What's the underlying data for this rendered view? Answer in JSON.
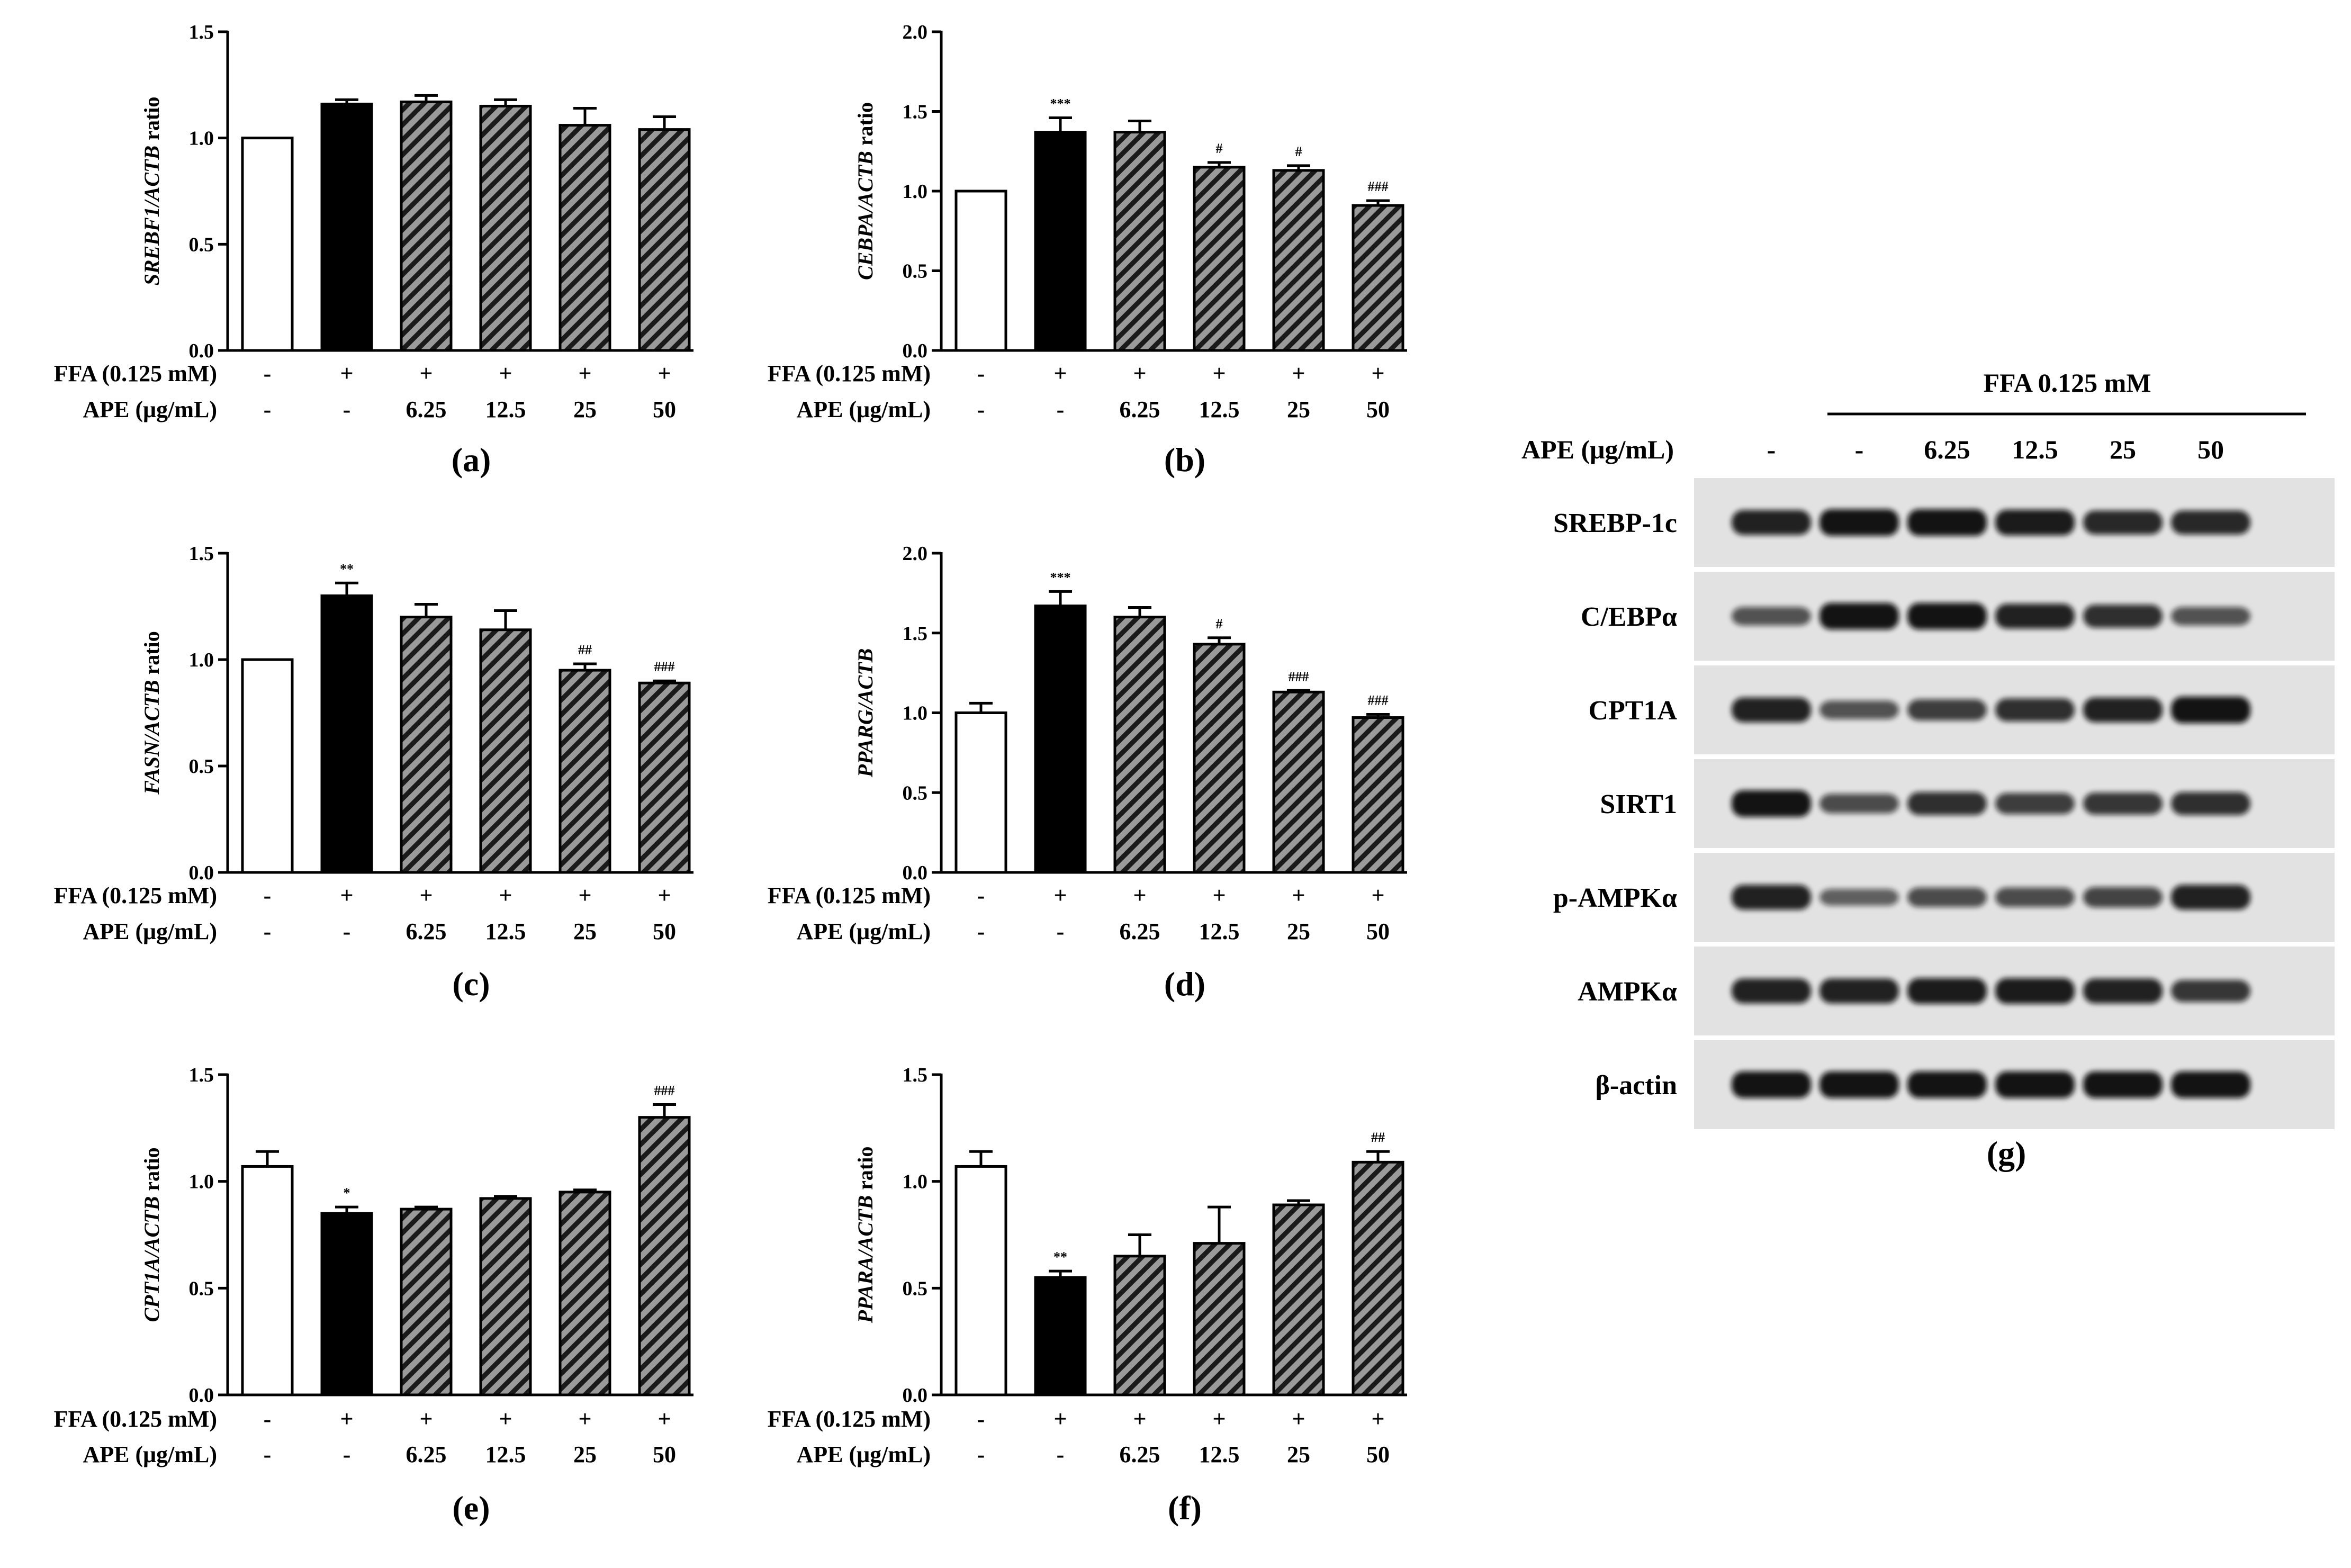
{
  "chart_data": [
    {
      "panel": "(a)",
      "type": "bar",
      "ylabel": {
        "gene": "SREBF1/ACTB",
        "suffix": " ratio"
      },
      "ylim": [
        0,
        1.5
      ],
      "yticks": [
        "0.0",
        "0.5",
        "1.0",
        "1.5"
      ],
      "bar_styles": [
        "white",
        "black",
        "hatched",
        "hatched",
        "hatched",
        "hatched"
      ],
      "values": [
        1.0,
        1.16,
        1.17,
        1.15,
        1.06,
        1.04
      ],
      "errors": [
        0.0,
        0.02,
        0.03,
        0.03,
        0.08,
        0.06
      ],
      "significance": [
        "",
        "",
        "",
        "",
        "",
        ""
      ],
      "conditions": {
        "row_labels": [
          "FFA (0.125 mM)",
          "APE (μg/mL)"
        ],
        "ffa": [
          "-",
          "+",
          "+",
          "+",
          "+",
          "+"
        ],
        "ape": [
          "-",
          "-",
          "6.25",
          "12.5",
          "25",
          "50"
        ]
      }
    },
    {
      "panel": "(b)",
      "type": "bar",
      "ylabel": {
        "gene": "CEBPA/ACTB",
        "suffix": " ratio"
      },
      "ylim": [
        0,
        2.0
      ],
      "yticks": [
        "0.0",
        "0.5",
        "1.0",
        "1.5",
        "2.0"
      ],
      "bar_styles": [
        "white",
        "black",
        "hatched",
        "hatched",
        "hatched",
        "hatched"
      ],
      "values": [
        1.0,
        1.37,
        1.37,
        1.15,
        1.13,
        0.91
      ],
      "errors": [
        0.0,
        0.09,
        0.07,
        0.03,
        0.03,
        0.03
      ],
      "significance": [
        "",
        "***",
        "",
        "#",
        "#",
        "###"
      ],
      "conditions": {
        "row_labels": [
          "FFA (0.125 mM)",
          "APE (μg/mL)"
        ],
        "ffa": [
          "-",
          "+",
          "+",
          "+",
          "+",
          "+"
        ],
        "ape": [
          "-",
          "-",
          "6.25",
          "12.5",
          "25",
          "50"
        ]
      }
    },
    {
      "panel": "(c)",
      "type": "bar",
      "ylabel": {
        "gene": "FASN/ACTB",
        "suffix": " ratio"
      },
      "ylim": [
        0,
        1.5
      ],
      "yticks": [
        "0.0",
        "0.5",
        "1.0",
        "1.5"
      ],
      "bar_styles": [
        "white",
        "black",
        "hatched",
        "hatched",
        "hatched",
        "hatched"
      ],
      "values": [
        1.0,
        1.3,
        1.2,
        1.14,
        0.95,
        0.89
      ],
      "errors": [
        0.0,
        0.06,
        0.06,
        0.09,
        0.03,
        0.01
      ],
      "significance": [
        "",
        "**",
        "",
        "",
        "##",
        "###"
      ],
      "conditions": {
        "row_labels": [
          "FFA (0.125 mM)",
          "APE (μg/mL)"
        ],
        "ffa": [
          "-",
          "+",
          "+",
          "+",
          "+",
          "+"
        ],
        "ape": [
          "-",
          "-",
          "6.25",
          "12.5",
          "25",
          "50"
        ]
      }
    },
    {
      "panel": "(d)",
      "type": "bar",
      "ylabel": {
        "gene": "PPARG/ACTB",
        "suffix": ""
      },
      "ylim": [
        0,
        2.0
      ],
      "yticks": [
        "0.0",
        "0.5",
        "1.0",
        "1.5",
        "2.0"
      ],
      "bar_styles": [
        "white",
        "black",
        "hatched",
        "hatched",
        "hatched",
        "hatched"
      ],
      "values": [
        1.0,
        1.67,
        1.6,
        1.43,
        1.13,
        0.97
      ],
      "errors": [
        0.06,
        0.09,
        0.06,
        0.04,
        0.01,
        0.02
      ],
      "significance": [
        "",
        "***",
        "",
        "#",
        "###",
        "###"
      ],
      "conditions": {
        "row_labels": [
          "FFA (0.125 mM)",
          "APE (μg/mL)"
        ],
        "ffa": [
          "-",
          "+",
          "+",
          "+",
          "+",
          "+"
        ],
        "ape": [
          "-",
          "-",
          "6.25",
          "12.5",
          "25",
          "50"
        ]
      }
    },
    {
      "panel": "(e)",
      "type": "bar",
      "ylabel": {
        "gene": "CPT1A/ACTB",
        "suffix": " ratio"
      },
      "ylim": [
        0,
        1.5
      ],
      "yticks": [
        "0.0",
        "0.5",
        "1.0",
        "1.5"
      ],
      "bar_styles": [
        "white",
        "black",
        "hatched",
        "hatched",
        "hatched",
        "hatched"
      ],
      "values": [
        1.07,
        0.85,
        0.87,
        0.92,
        0.95,
        1.3
      ],
      "errors": [
        0.07,
        0.03,
        0.01,
        0.01,
        0.01,
        0.06
      ],
      "significance": [
        "",
        "*",
        "",
        "",
        "",
        "###"
      ],
      "conditions": {
        "row_labels": [
          "FFA (0.125 mM)",
          "APE (μg/mL)"
        ],
        "ffa": [
          "-",
          "+",
          "+",
          "+",
          "+",
          "+"
        ],
        "ape": [
          "-",
          "-",
          "6.25",
          "12.5",
          "25",
          "50"
        ]
      }
    },
    {
      "panel": "(f)",
      "type": "bar",
      "ylabel": {
        "gene": "PPARA/ACTB",
        "suffix": " ratio"
      },
      "ylim": [
        0,
        1.5
      ],
      "yticks": [
        "0.0",
        "0.5",
        "1.0",
        "1.5"
      ],
      "bar_styles": [
        "white",
        "black",
        "hatched",
        "hatched",
        "hatched",
        "hatched"
      ],
      "values": [
        1.07,
        0.55,
        0.65,
        0.71,
        0.89,
        1.09
      ],
      "errors": [
        0.07,
        0.03,
        0.1,
        0.17,
        0.02,
        0.05
      ],
      "significance": [
        "",
        "**",
        "",
        "",
        "",
        "##"
      ],
      "conditions": {
        "row_labels": [
          "FFA (0.125 mM)",
          "APE (μg/mL)"
        ],
        "ffa": [
          "-",
          "+",
          "+",
          "+",
          "+",
          "+"
        ],
        "ape": [
          "-",
          "-",
          "6.25",
          "12.5",
          "25",
          "50"
        ]
      }
    }
  ],
  "western_blot": {
    "panel": "(g)",
    "header": "FFA 0.125 mM",
    "ape_label": "APE (μg/mL)",
    "ape_lanes": [
      "-",
      "-",
      "6.25",
      "12.5",
      "25",
      "50"
    ],
    "proteins": [
      {
        "name": "SREBP-1c",
        "intensity": [
          0.85,
          0.95,
          0.95,
          0.9,
          0.8,
          0.8
        ]
      },
      {
        "name": "C/EBPα",
        "intensity": [
          0.5,
          0.95,
          0.95,
          0.85,
          0.75,
          0.5
        ]
      },
      {
        "name": "CPT1A",
        "intensity": [
          0.85,
          0.5,
          0.65,
          0.75,
          0.85,
          0.95
        ]
      },
      {
        "name": "SIRT1",
        "intensity": [
          0.95,
          0.55,
          0.75,
          0.65,
          0.7,
          0.75
        ]
      },
      {
        "name": "p-AMPKα",
        "intensity": [
          0.85,
          0.4,
          0.55,
          0.55,
          0.6,
          0.85
        ]
      },
      {
        "name": "AMPKα",
        "intensity": [
          0.85,
          0.85,
          0.9,
          0.9,
          0.85,
          0.7
        ]
      },
      {
        "name": "β-actin",
        "intensity": [
          0.95,
          0.95,
          0.95,
          0.95,
          0.95,
          0.95
        ]
      }
    ]
  },
  "colors": {
    "bar_outline": "#000000",
    "control_bar": "#ffffff",
    "ffa_bar": "#000000",
    "hatch_background": "#9a9a9a",
    "hatch_line": "#1a1a1a",
    "blot_background": "#e2e2e2",
    "band": "#0a0a0a"
  }
}
